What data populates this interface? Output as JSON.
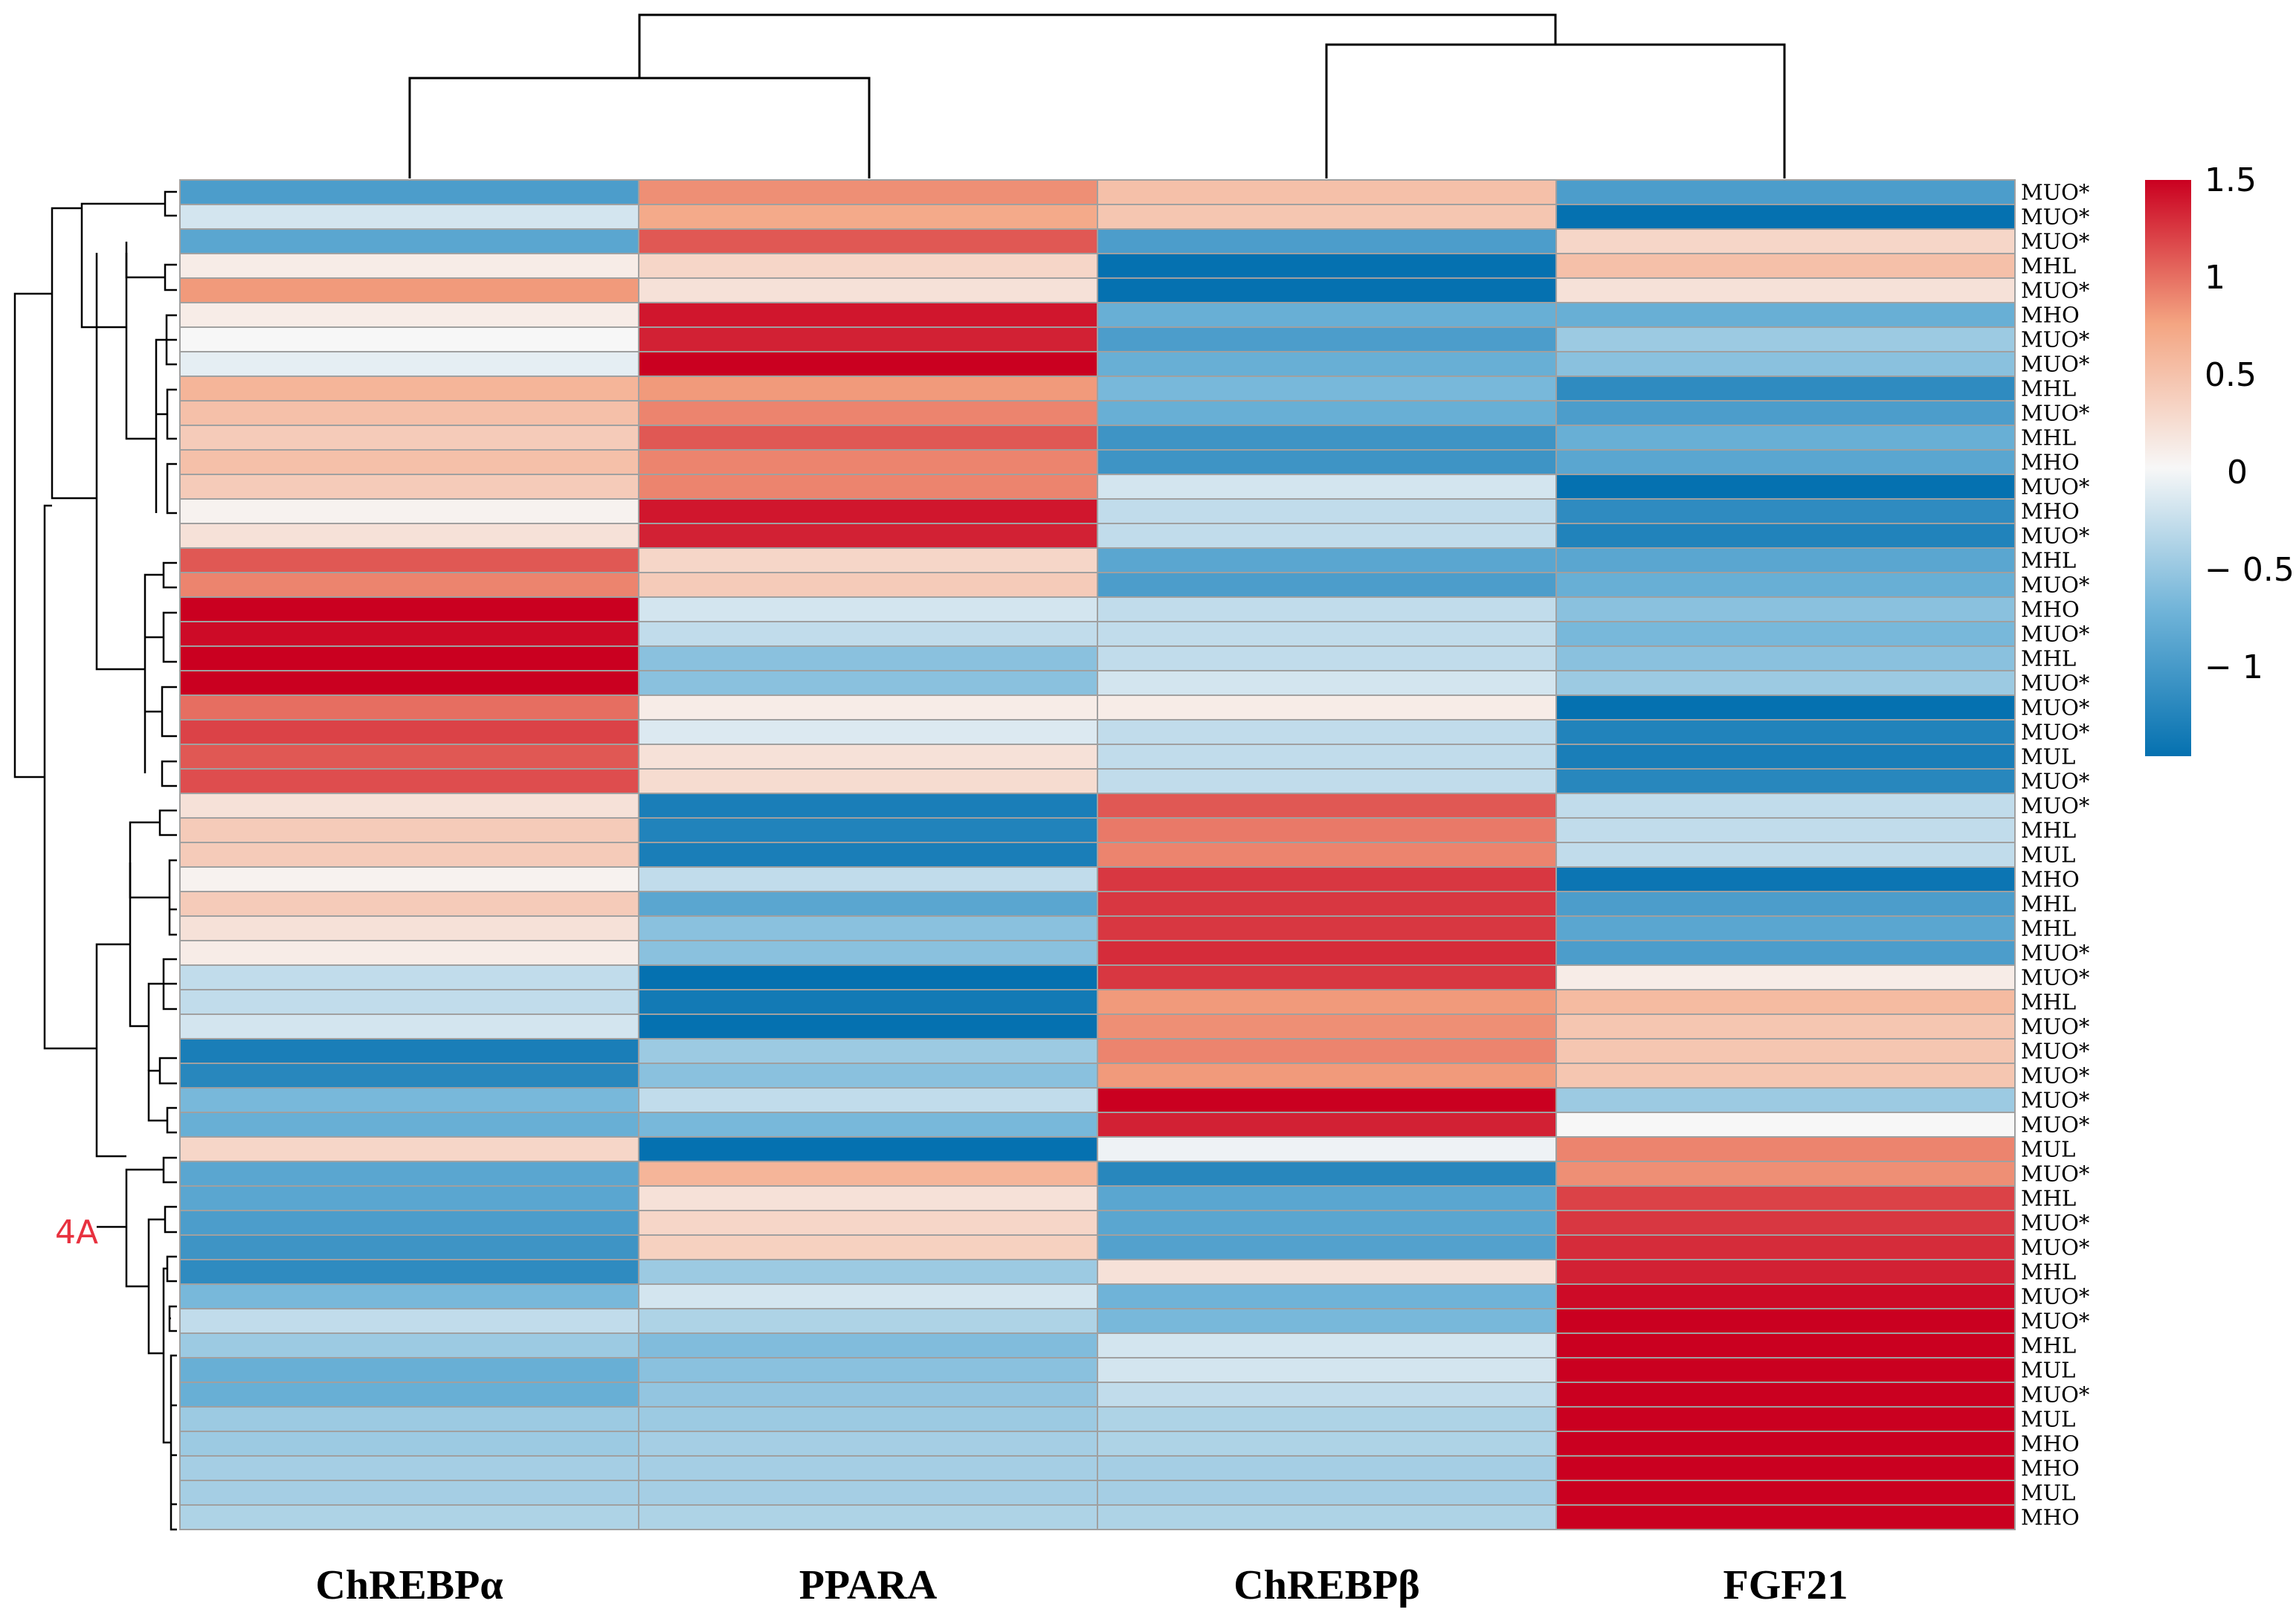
{
  "chart_data": {
    "type": "heatmap",
    "title": "",
    "columns": [
      "ChREBPα",
      "PPARA",
      "ChREBPβ",
      "FGF21"
    ],
    "rows": [
      "MUO*",
      "MUO*",
      "MUO*",
      "MHL",
      "MUO*",
      "MHO",
      "MUO*",
      "MUO*",
      "MHL",
      "MUO*",
      "MHL",
      "MHO",
      "MUO*",
      "MHO",
      "MUO*",
      "MHL",
      "MUO*",
      "MHO",
      "MUO*",
      "MHL",
      "MUO*",
      "MUO*",
      "MUO*",
      "MUL",
      "MUO*",
      "MUO*",
      "MHL",
      "MUL",
      "MHO",
      "MHL",
      "MHL",
      "MUO*",
      "MUO*",
      "MHL",
      "MUO*",
      "MUO*",
      "MUO*",
      "MUO*",
      "MUO*",
      "MUL",
      "MUO*",
      "MHL",
      "MUO*",
      "MUO*",
      "MHL",
      "MUO*",
      "MUO*",
      "MHL",
      "MUL",
      "MUO*",
      "MUL",
      "MHO",
      "MHO",
      "MUL",
      "MHO"
    ],
    "values": [
      [
        -1.0,
        0.85,
        0.5,
        -1.0
      ],
      [
        -0.2,
        0.7,
        0.45,
        -1.5
      ],
      [
        -0.9,
        1.1,
        -1.0,
        0.3
      ],
      [
        0.1,
        0.3,
        -1.5,
        0.5
      ],
      [
        0.8,
        0.2,
        -1.5,
        0.2
      ],
      [
        0.1,
        1.4,
        -0.8,
        -0.8
      ],
      [
        0.0,
        1.35,
        -1.0,
        -0.5
      ],
      [
        -0.1,
        1.5,
        -0.8,
        -0.6
      ],
      [
        0.6,
        0.8,
        -0.7,
        -1.2
      ],
      [
        0.5,
        0.9,
        -0.8,
        -1.0
      ],
      [
        0.4,
        1.1,
        -1.1,
        -0.8
      ],
      [
        0.5,
        0.9,
        -1.1,
        -0.9
      ],
      [
        0.4,
        0.9,
        -0.2,
        -1.5
      ],
      [
        0.05,
        1.4,
        -0.3,
        -1.2
      ],
      [
        0.2,
        1.35,
        -0.3,
        -1.3
      ],
      [
        1.1,
        0.3,
        -0.9,
        -0.9
      ],
      [
        0.9,
        0.4,
        -1.0,
        -0.8
      ],
      [
        1.5,
        -0.2,
        -0.3,
        -0.6
      ],
      [
        1.45,
        -0.3,
        -0.3,
        -0.7
      ],
      [
        1.5,
        -0.6,
        -0.3,
        -0.6
      ],
      [
        1.5,
        -0.6,
        -0.2,
        -0.5
      ],
      [
        1.0,
        0.1,
        0.1,
        -1.5
      ],
      [
        1.2,
        -0.15,
        -0.3,
        -1.3
      ],
      [
        1.1,
        0.2,
        -0.3,
        -1.35
      ],
      [
        1.15,
        0.25,
        -0.3,
        -1.25
      ],
      [
        0.2,
        -1.35,
        1.1,
        -0.3
      ],
      [
        0.4,
        -1.3,
        0.95,
        -0.3
      ],
      [
        0.4,
        -1.35,
        0.9,
        -0.3
      ],
      [
        0.05,
        -0.3,
        1.25,
        -1.45
      ],
      [
        0.4,
        -0.9,
        1.25,
        -1.0
      ],
      [
        0.2,
        -0.6,
        1.25,
        -0.9
      ],
      [
        0.1,
        -0.6,
        1.3,
        -1.0
      ],
      [
        -0.3,
        -1.5,
        1.25,
        0.1
      ],
      [
        -0.3,
        -1.4,
        0.8,
        0.55
      ],
      [
        -0.2,
        -1.5,
        0.85,
        0.45
      ],
      [
        -1.35,
        -0.5,
        0.9,
        0.45
      ],
      [
        -1.25,
        -0.6,
        0.8,
        0.45
      ],
      [
        -0.7,
        -0.3,
        1.5,
        -0.5
      ],
      [
        -0.8,
        -0.7,
        1.35,
        0.0
      ],
      [
        0.3,
        -1.5,
        -0.05,
        0.9
      ],
      [
        -0.9,
        0.6,
        -1.25,
        0.85
      ],
      [
        -0.9,
        0.2,
        -0.9,
        1.2
      ],
      [
        -1.0,
        0.3,
        -0.9,
        1.25
      ],
      [
        -1.1,
        0.35,
        -0.95,
        1.3
      ],
      [
        -1.2,
        -0.5,
        0.2,
        1.35
      ],
      [
        -0.7,
        -0.2,
        -0.75,
        1.45
      ],
      [
        -0.3,
        -0.4,
        -0.7,
        1.5
      ],
      [
        -0.5,
        -0.65,
        -0.2,
        1.5
      ],
      [
        -0.8,
        -0.6,
        -0.2,
        1.5
      ],
      [
        -0.8,
        -0.55,
        -0.3,
        1.5
      ],
      [
        -0.5,
        -0.5,
        -0.4,
        1.5
      ],
      [
        -0.5,
        -0.45,
        -0.4,
        1.5
      ],
      [
        -0.45,
        -0.45,
        -0.45,
        1.5
      ],
      [
        -0.45,
        -0.45,
        -0.45,
        1.5
      ],
      [
        -0.4,
        -0.4,
        -0.4,
        1.5
      ]
    ],
    "color_scale": {
      "min": -1.5,
      "max": 1.5,
      "stops": [
        {
          "v": -1.5,
          "c": "#0571b0"
        },
        {
          "v": -0.75,
          "c": "#6fb3d8"
        },
        {
          "v": 0.0,
          "c": "#f7f7f7"
        },
        {
          "v": 0.75,
          "c": "#f4a582"
        },
        {
          "v": 1.5,
          "c": "#ca0020"
        }
      ],
      "ticks": [
        "1.5",
        "1",
        "0.5",
        "0",
        "− 0.5",
        "− 1"
      ]
    },
    "grid_color": "#a0a0a0",
    "annotation": "4A"
  }
}
